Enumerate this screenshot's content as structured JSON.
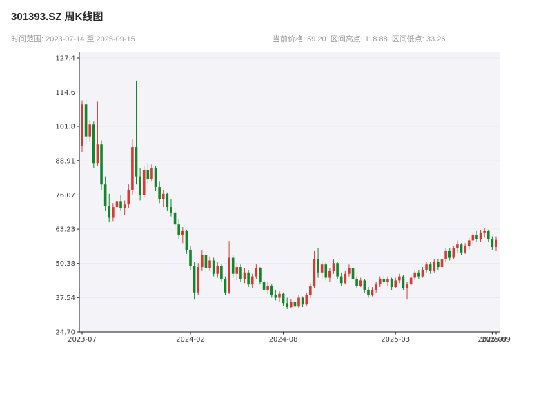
{
  "header": {
    "title": "301393.SZ 周K线图",
    "subtitle_left": "时间范围: 2023-07-14 至 2025-09-15",
    "subtitle_right": "当前价格: 59.20  区间高点: 118.88  区间低点: 33.26"
  },
  "chart_data": {
    "type": "candlestick",
    "title": "301393.SZ 周K线图",
    "symbol": "301393.SZ",
    "period": "weekly",
    "current_price": 59.2,
    "range_high": 118.88,
    "range_low": 33.26,
    "ylim": [
      24.7,
      127.4
    ],
    "grid": true,
    "legend": "none",
    "up_color": "#d23c35",
    "down_color": "#12862b",
    "plot_bg": "#f4f4f8",
    "grid_color": "#eaeaf2",
    "axis_color": "#1a1a1a",
    "y_ticks": [
      {
        "label": "127.4",
        "value": 127.4
      },
      {
        "label": "114.6",
        "value": 114.6
      },
      {
        "label": "101.8",
        "value": 101.8
      },
      {
        "label": "88.91",
        "value": 88.91
      },
      {
        "label": "76.07",
        "value": 76.07
      },
      {
        "label": "63.23",
        "value": 63.23
      },
      {
        "label": "50.38",
        "value": 50.38
      },
      {
        "label": "37.54",
        "value": 37.54
      },
      {
        "label": "24.70",
        "value": 24.7
      }
    ],
    "x_ticks": [
      {
        "label": "2023-07",
        "index": 0
      },
      {
        "label": "2024-02",
        "index": 28
      },
      {
        "label": "2024-08",
        "index": 52
      },
      {
        "label": "2025-03",
        "index": 81
      },
      {
        "label": "2025-09",
        "index": 106
      },
      {
        "label": "2025-09",
        "index": 107
      }
    ],
    "candles": [
      [
        94.5,
        111.5,
        92.0,
        110.0
      ],
      [
        110.0,
        112.0,
        95.0,
        98.0
      ],
      [
        98.0,
        104.0,
        96.0,
        102.5
      ],
      [
        102.5,
        103.5,
        86.0,
        88.0
      ],
      [
        88.0,
        111.0,
        87.0,
        95.0
      ],
      [
        95.0,
        96.5,
        78.0,
        80.0
      ],
      [
        80.0,
        83.0,
        70.0,
        72.0
      ],
      [
        72.0,
        76.5,
        65.8,
        67.5
      ],
      [
        67.5,
        73.0,
        66.0,
        71.5
      ],
      [
        71.5,
        75.0,
        68.0,
        73.5
      ],
      [
        73.5,
        76.0,
        70.0,
        71.0
      ],
      [
        71.0,
        74.0,
        68.5,
        72.5
      ],
      [
        72.5,
        80.0,
        71.0,
        78.0
      ],
      [
        78.0,
        97.0,
        76.0,
        94.0
      ],
      [
        94.0,
        118.88,
        80.0,
        83.0
      ],
      [
        83.0,
        86.0,
        74.0,
        76.0
      ],
      [
        76.0,
        87.0,
        75.0,
        85.5
      ],
      [
        85.5,
        88.0,
        80.0,
        82.0
      ],
      [
        82.0,
        87.5,
        81.0,
        86.0
      ],
      [
        86.0,
        87.0,
        77.5,
        79.0
      ],
      [
        79.0,
        81.0,
        73.0,
        74.5
      ],
      [
        74.5,
        78.0,
        71.5,
        76.5
      ],
      [
        76.5,
        77.0,
        70.0,
        71.5
      ],
      [
        71.5,
        74.5,
        68.0,
        69.5
      ],
      [
        69.5,
        71.0,
        63.5,
        65.0
      ],
      [
        65.0,
        67.0,
        59.5,
        61.0
      ],
      [
        61.0,
        64.0,
        58.0,
        62.5
      ],
      [
        62.5,
        63.0,
        54.0,
        55.5
      ],
      [
        55.5,
        57.0,
        48.0,
        49.5
      ],
      [
        49.5,
        51.0,
        36.8,
        39.5
      ],
      [
        39.5,
        50.5,
        38.5,
        49.0
      ],
      [
        49.0,
        55.5,
        47.5,
        53.5
      ],
      [
        53.5,
        54.5,
        47.0,
        48.5
      ],
      [
        48.5,
        53.0,
        47.5,
        51.5
      ],
      [
        51.5,
        52.5,
        45.5,
        46.5
      ],
      [
        46.5,
        51.0,
        45.0,
        49.5
      ],
      [
        49.5,
        50.0,
        43.5,
        44.5
      ],
      [
        44.5,
        45.5,
        38.5,
        39.5
      ],
      [
        39.5,
        58.8,
        39.0,
        52.5
      ],
      [
        52.5,
        53.5,
        45.0,
        46.5
      ],
      [
        46.5,
        50.5,
        44.0,
        49.0
      ],
      [
        49.0,
        50.0,
        43.5,
        44.5
      ],
      [
        44.5,
        48.5,
        43.0,
        47.0
      ],
      [
        47.0,
        48.0,
        41.5,
        42.5
      ],
      [
        42.5,
        46.5,
        41.0,
        45.5
      ],
      [
        45.5,
        50.0,
        44.5,
        48.5
      ],
      [
        48.5,
        49.0,
        42.5,
        43.5
      ],
      [
        43.5,
        44.5,
        39.5,
        40.5
      ],
      [
        40.5,
        43.5,
        39.0,
        42.0
      ],
      [
        42.0,
        42.5,
        37.5,
        38.5
      ],
      [
        38.5,
        40.5,
        36.5,
        37.5
      ],
      [
        37.5,
        40.0,
        36.0,
        39.0
      ],
      [
        39.0,
        39.5,
        34.5,
        35.5
      ],
      [
        35.5,
        37.5,
        33.26,
        34.0
      ],
      [
        34.0,
        37.0,
        33.5,
        36.0
      ],
      [
        36.0,
        36.5,
        33.5,
        34.2
      ],
      [
        34.2,
        38.5,
        33.8,
        37.5
      ],
      [
        37.5,
        38.0,
        34.0,
        35.0
      ],
      [
        35.0,
        39.5,
        34.5,
        38.5
      ],
      [
        38.5,
        43.0,
        37.5,
        42.0
      ],
      [
        42.0,
        55.0,
        41.0,
        52.0
      ],
      [
        52.0,
        56.0,
        45.0,
        47.0
      ],
      [
        47.0,
        51.5,
        44.5,
        50.0
      ],
      [
        50.0,
        51.0,
        44.0,
        45.0
      ],
      [
        45.0,
        48.5,
        43.5,
        47.5
      ],
      [
        47.5,
        52.0,
        46.5,
        50.5
      ],
      [
        50.5,
        51.0,
        44.5,
        45.5
      ],
      [
        45.5,
        47.0,
        42.0,
        43.0
      ],
      [
        43.0,
        47.5,
        42.5,
        46.5
      ],
      [
        46.5,
        50.0,
        45.5,
        48.5
      ],
      [
        48.5,
        49.5,
        43.5,
        44.5
      ],
      [
        44.5,
        45.5,
        41.0,
        42.0
      ],
      [
        42.0,
        45.0,
        41.5,
        44.0
      ],
      [
        44.0,
        44.5,
        39.5,
        40.5
      ],
      [
        40.5,
        41.5,
        37.5,
        38.5
      ],
      [
        38.5,
        41.5,
        38.0,
        40.5
      ],
      [
        40.5,
        43.5,
        39.5,
        42.5
      ],
      [
        42.5,
        45.5,
        41.5,
        44.5
      ],
      [
        44.5,
        46.0,
        42.5,
        43.5
      ],
      [
        43.5,
        45.5,
        42.0,
        44.5
      ],
      [
        44.5,
        45.0,
        40.5,
        41.5
      ],
      [
        41.5,
        45.0,
        41.0,
        44.0
      ],
      [
        44.0,
        46.5,
        43.0,
        45.5
      ],
      [
        45.5,
        46.0,
        40.5,
        41.0
      ],
      [
        41.0,
        43.5,
        36.8,
        42.5
      ],
      [
        42.5,
        46.0,
        42.0,
        45.0
      ],
      [
        45.0,
        48.0,
        44.0,
        47.0
      ],
      [
        47.0,
        48.0,
        44.5,
        45.5
      ],
      [
        45.5,
        49.0,
        45.0,
        48.0
      ],
      [
        48.0,
        51.0,
        47.0,
        50.0
      ],
      [
        50.0,
        51.0,
        46.5,
        47.5
      ],
      [
        47.5,
        52.0,
        47.0,
        51.0
      ],
      [
        51.0,
        52.0,
        48.0,
        49.0
      ],
      [
        49.0,
        53.0,
        48.5,
        52.0
      ],
      [
        52.0,
        56.0,
        51.0,
        55.0
      ],
      [
        55.0,
        56.0,
        51.5,
        52.5
      ],
      [
        52.5,
        57.0,
        52.0,
        56.0
      ],
      [
        56.0,
        59.0,
        54.5,
        57.5
      ],
      [
        57.5,
        58.0,
        53.5,
        54.5
      ],
      [
        54.5,
        58.0,
        54.0,
        57.0
      ],
      [
        57.0,
        60.0,
        55.5,
        59.0
      ],
      [
        59.0,
        62.0,
        57.5,
        61.0
      ],
      [
        61.0,
        62.5,
        58.5,
        59.5
      ],
      [
        59.5,
        63.0,
        58.5,
        62.0
      ],
      [
        62.0,
        63.5,
        60.0,
        62.5
      ],
      [
        62.5,
        63.0,
        58.5,
        59.5
      ],
      [
        59.5,
        60.5,
        55.5,
        56.5
      ],
      [
        56.5,
        60.5,
        55.0,
        59.2
      ]
    ]
  }
}
